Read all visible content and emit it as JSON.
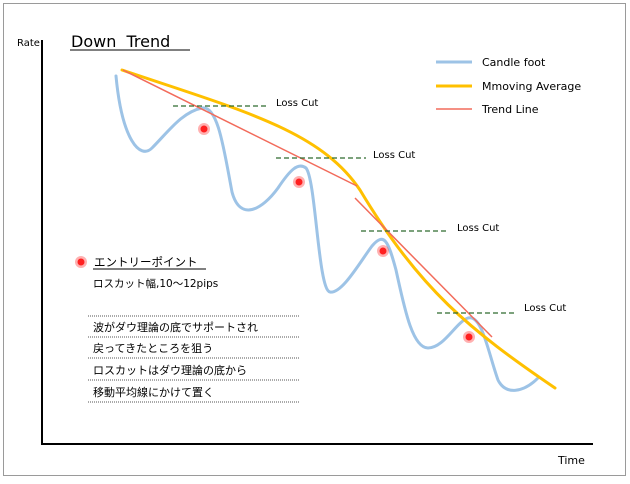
{
  "title": "Down  Trend",
  "axes": {
    "y_label": "Rate",
    "x_label": "Time"
  },
  "legend": [
    {
      "label": "Candle foot",
      "color": "#9dc3e6"
    },
    {
      "label": "Mmoving Average",
      "color": "#ffc000"
    },
    {
      "label": "Trend Line",
      "color": "#f26b5b"
    }
  ],
  "loss_cut_label": "Loss Cut",
  "entry": {
    "label": "エントリーポイント",
    "subtitle": "ロスカット幅,10～12pips",
    "marker_color": "#ff2020"
  },
  "notes": [
    "波がダウ理論の底でサポートされ",
    "戻ってきたところを狙う",
    "ロスカットはダウ理論の底から",
    "移動平均線にかけて置く"
  ],
  "colors": {
    "border": "#9a9a9a",
    "axis": "#000000",
    "loss_cut_line": "#2f6b2f"
  }
}
